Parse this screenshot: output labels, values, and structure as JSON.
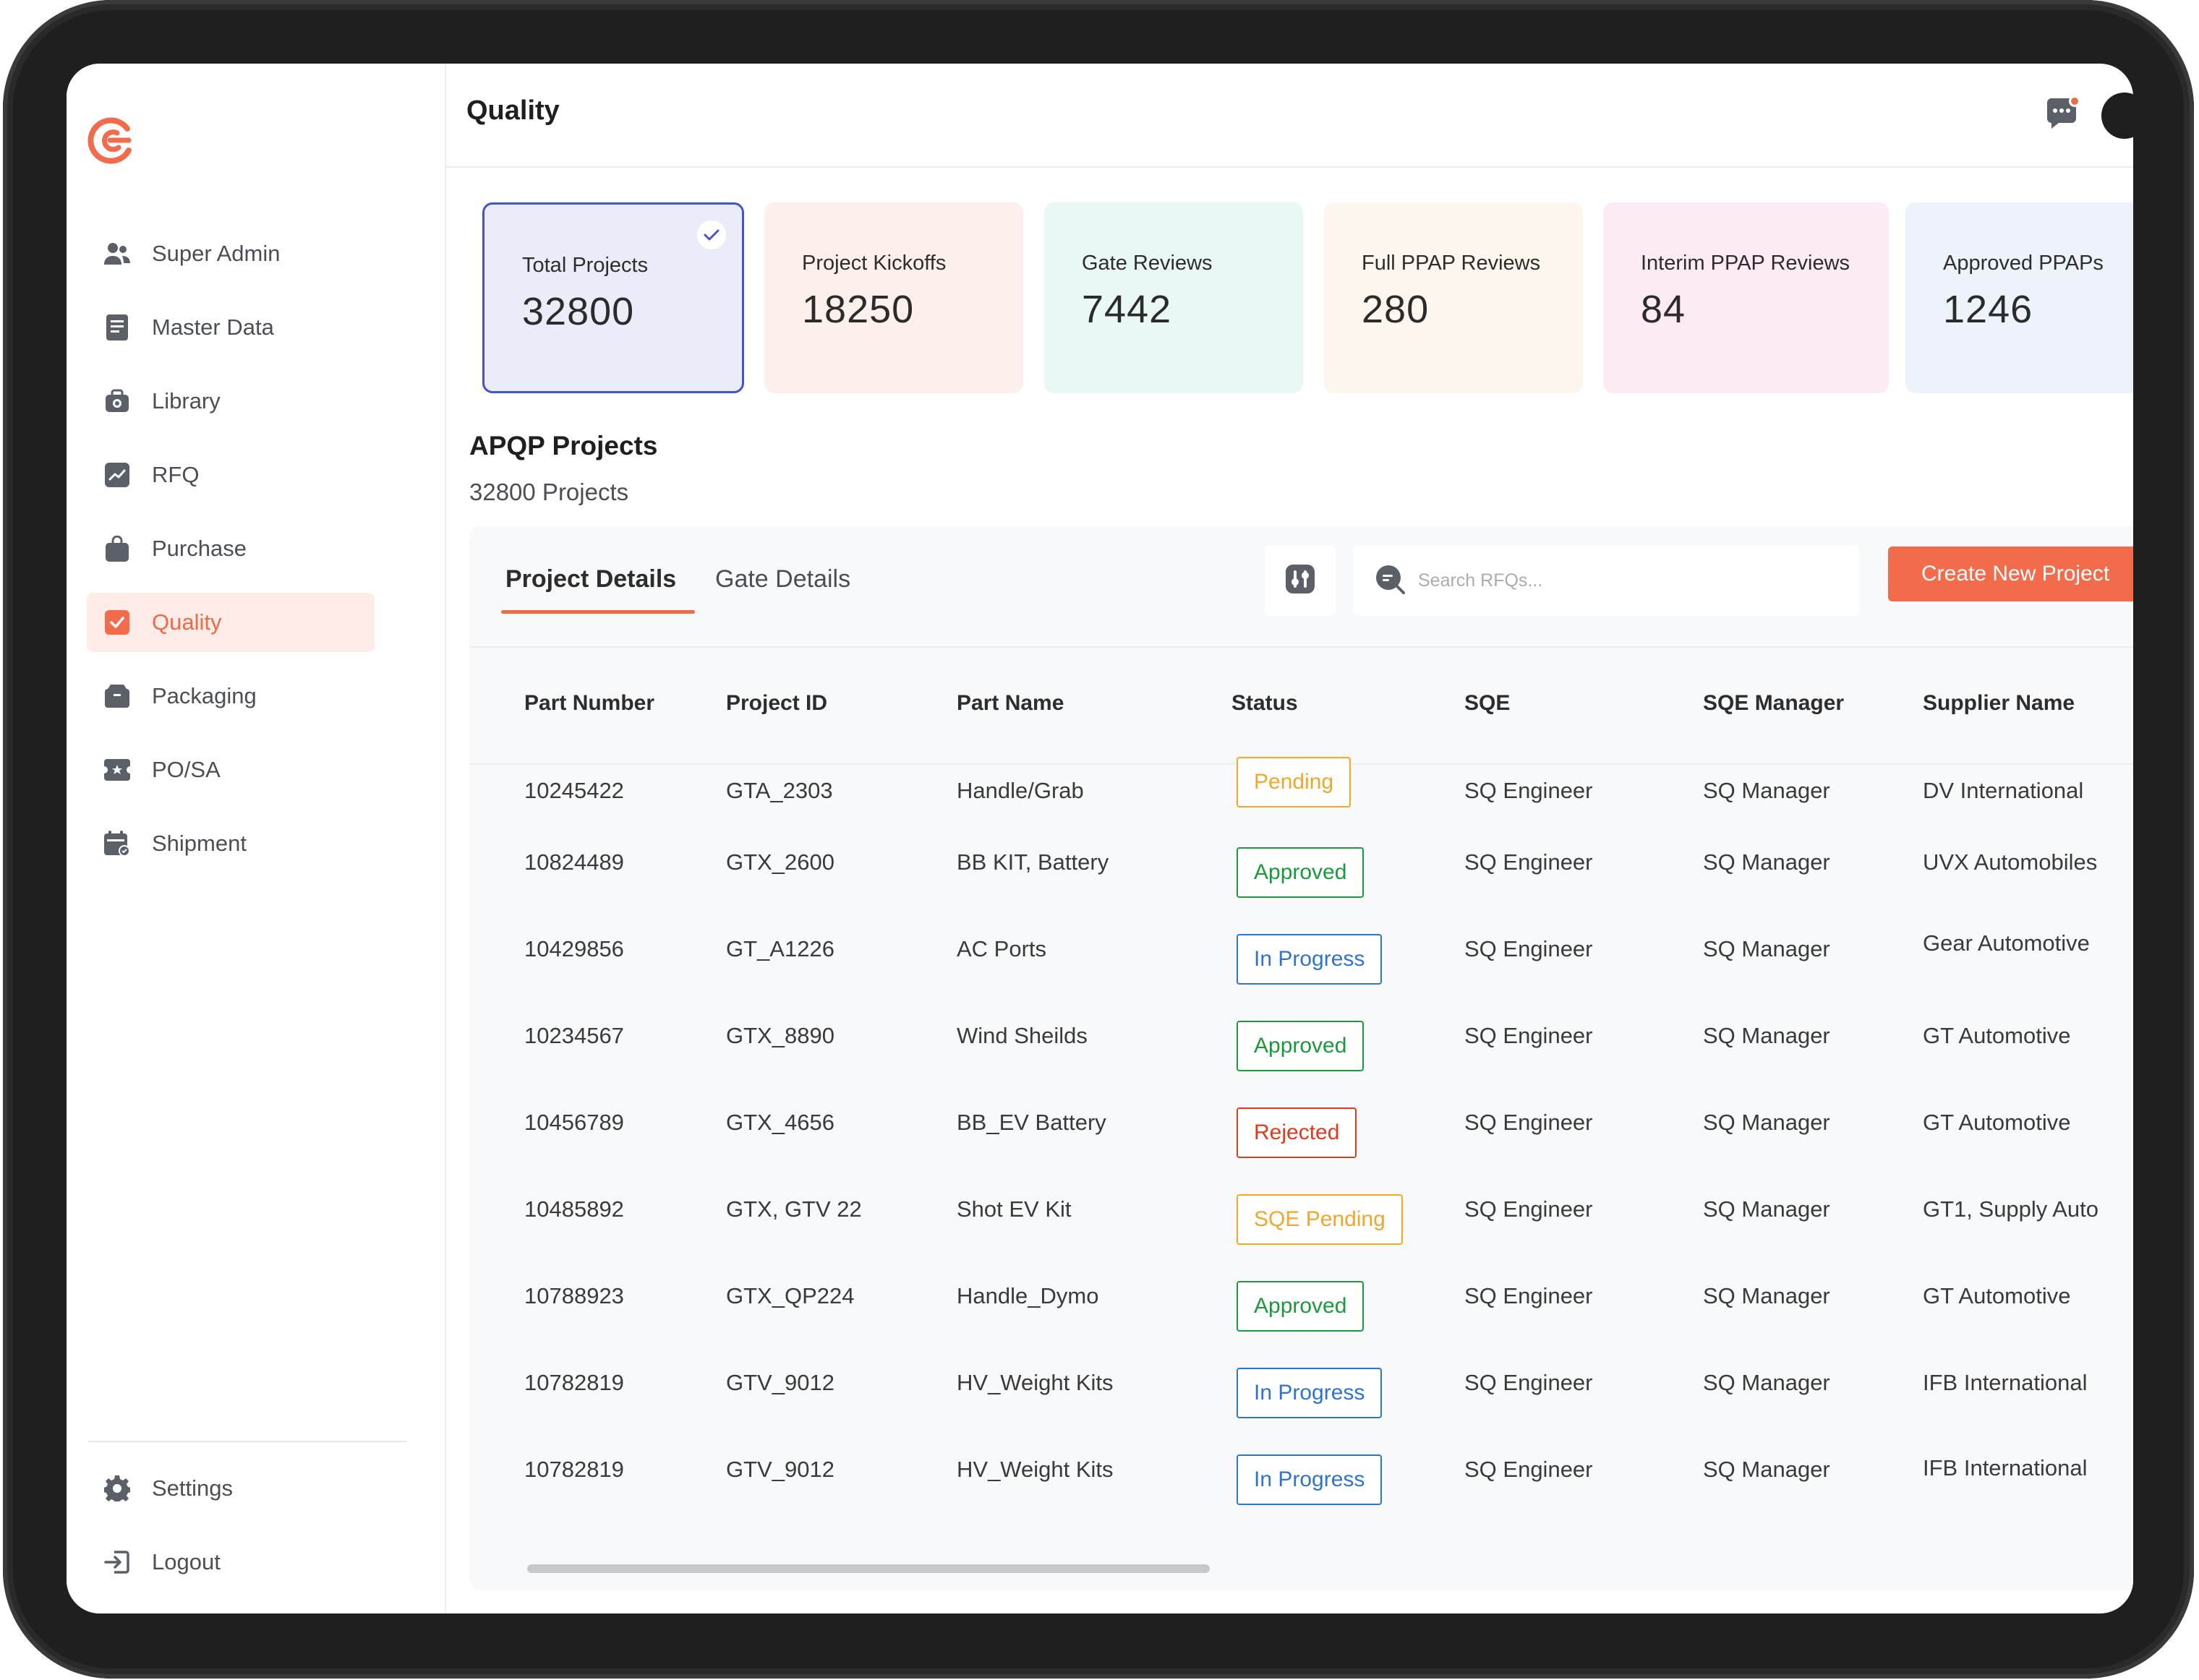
{
  "header": {
    "title": "Quality"
  },
  "sidebar": {
    "items": [
      {
        "label": "Super Admin",
        "icon": "users-icon"
      },
      {
        "label": "Master Data",
        "icon": "database-icon"
      },
      {
        "label": "Library",
        "icon": "library-icon"
      },
      {
        "label": "RFQ",
        "icon": "chart-icon"
      },
      {
        "label": "Purchase",
        "icon": "bag-icon"
      },
      {
        "label": "Quality",
        "icon": "check-square-icon",
        "active": true
      },
      {
        "label": "Packaging",
        "icon": "box-icon"
      },
      {
        "label": "PO/SA",
        "icon": "ticket-icon"
      },
      {
        "label": "Shipment",
        "icon": "calendar-icon"
      }
    ],
    "bottom": [
      {
        "label": "Settings",
        "icon": "gear-icon"
      },
      {
        "label": "Logout",
        "icon": "logout-icon"
      }
    ]
  },
  "cards": [
    {
      "label": "Total Projects",
      "value": "32800",
      "bg": "#ebecf9",
      "selected": true
    },
    {
      "label": "Project Kickoffs",
      "value": "18250",
      "bg": "#fdf0ec"
    },
    {
      "label": "Gate Reviews",
      "value": "7442",
      "bg": "#e9f7f5"
    },
    {
      "label": "Full PPAP Reviews",
      "value": "280",
      "bg": "#fdf6ee"
    },
    {
      "label": "Interim PPAP Reviews",
      "value": "84",
      "bg": "#fceaf4"
    },
    {
      "label": "Approved PPAPs",
      "value": "1246",
      "bg": "#edf2fb"
    }
  ],
  "section": {
    "title": "APQP Projects",
    "subtitle": "32800 Projects"
  },
  "tabs": [
    {
      "label": "Project Details",
      "active": true
    },
    {
      "label": "Gate Details",
      "active": false
    }
  ],
  "search": {
    "placeholder": "Search RFQs...",
    "value": ""
  },
  "create_button": "Create New Project",
  "columns": [
    "Part Number",
    "Project ID",
    "Part Name",
    "Status",
    "SQE",
    "SQE Manager",
    "Supplier Name"
  ],
  "rows": [
    {
      "part_number": "10245422",
      "project_id": "GTA_2303",
      "part_name": "Handle/Grab",
      "status": "Pending",
      "status_type": "pending",
      "sqe": "SQ Engineer",
      "sqe_manager": "SQ Manager",
      "supplier": "DV International"
    },
    {
      "part_number": "10824489",
      "project_id": "GTX_2600",
      "part_name": "BB KIT, Battery",
      "status": "Approved",
      "status_type": "approved",
      "sqe": "SQ Engineer",
      "sqe_manager": "SQ Manager",
      "supplier": "UVX Automobiles"
    },
    {
      "part_number": "10429856",
      "project_id": "GT_A1226",
      "part_name": "AC Ports",
      "status": "In Progress",
      "status_type": "inprogress",
      "sqe": "SQ Engineer",
      "sqe_manager": "SQ Manager",
      "supplier": "Gear Automotive"
    },
    {
      "part_number": "10234567",
      "project_id": "GTX_8890",
      "part_name": "Wind Sheilds",
      "status": "Approved",
      "status_type": "approved",
      "sqe": "SQ Engineer",
      "sqe_manager": "SQ Manager",
      "supplier": "GT Automotive"
    },
    {
      "part_number": "10456789",
      "project_id": "GTX_4656",
      "part_name": "BB_EV Battery",
      "status": "Rejected",
      "status_type": "rejected",
      "sqe": "SQ Engineer",
      "sqe_manager": "SQ Manager",
      "supplier": "GT Automotive"
    },
    {
      "part_number": "10485892",
      "project_id": "GTX, GTV 22",
      "part_name": "Shot EV Kit",
      "status": "SQE Pending",
      "status_type": "sqepending",
      "sqe": "SQ Engineer",
      "sqe_manager": "SQ Manager",
      "supplier": "GT1, Supply Auto"
    },
    {
      "part_number": "10788923",
      "project_id": "GTX_QP224",
      "part_name": "Handle_Dymo",
      "status": "Approved",
      "status_type": "approved",
      "sqe": "SQ Engineer",
      "sqe_manager": "SQ Manager",
      "supplier": "GT Automotive"
    },
    {
      "part_number": "10782819",
      "project_id": "GTV_9012",
      "part_name": "HV_Weight Kits",
      "status": "In Progress",
      "status_type": "inprogress",
      "sqe": "SQ Engineer",
      "sqe_manager": "SQ Manager",
      "supplier": "IFB International"
    },
    {
      "part_number": "10782819",
      "project_id": "GTV_9012",
      "part_name": "HV_Weight Kits",
      "status": "In Progress",
      "status_type": "inprogress",
      "sqe": "SQ Engineer",
      "sqe_manager": "SQ Manager",
      "supplier": "IFB International"
    }
  ],
  "colors": {
    "accent": "#f26b4b",
    "selected_border": "#4555c7"
  }
}
